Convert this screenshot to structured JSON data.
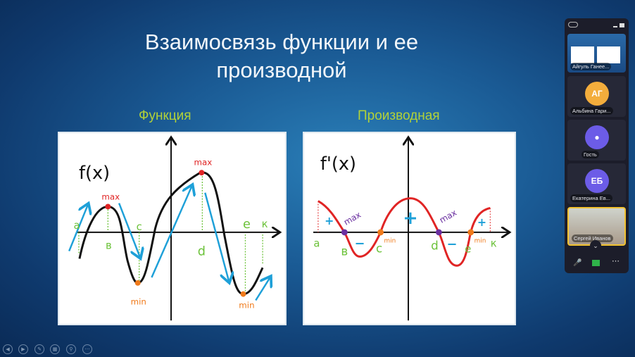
{
  "slide": {
    "title_line1": "Взаимосвязь функции и ее",
    "title_line2": "производной",
    "left_heading": "Функция",
    "right_heading": "Производная"
  },
  "function_graph": {
    "label": "f(x)",
    "points": [
      "a",
      "в",
      "c",
      "d",
      "e",
      "к"
    ],
    "max_label": "max",
    "min_label": "min"
  },
  "derivative_graph": {
    "label": "f'(x)",
    "points": [
      "a",
      "в",
      "c",
      "d",
      "e",
      "к"
    ],
    "max_label": "max",
    "min_label": "min",
    "plus": "+",
    "minus": "−"
  },
  "colors": {
    "accent": "#b3d238",
    "curve_function": "#111111",
    "curve_derivative": "#e02424",
    "arrow": "#1ea0d8",
    "max": "#e02424",
    "min": "#f07a1a",
    "point_label": "#6cc23a",
    "extremum_derivative": "#6a2fa0"
  },
  "sidebar": {
    "participants": [
      {
        "name": "Айгуль Ганее...",
        "type": "screen-share"
      },
      {
        "name": "Альбина Гари...",
        "initials": "АГ",
        "color": "#f3ad3c"
      },
      {
        "name": "Гость",
        "icon": "user-icon",
        "color": "#6c5ce7"
      },
      {
        "name": "Екатерина Ев...",
        "initials": "ЕБ",
        "color": "#6c5ce7"
      },
      {
        "name": "Сергей Иванов",
        "type": "video"
      }
    ],
    "controls": [
      "mic-off-icon",
      "screen-share-icon",
      "more-icon"
    ]
  },
  "slideshow_controls": [
    "previous-icon",
    "next-icon",
    "pen-icon",
    "slides-icon",
    "zoom-icon",
    "more-icon"
  ]
}
